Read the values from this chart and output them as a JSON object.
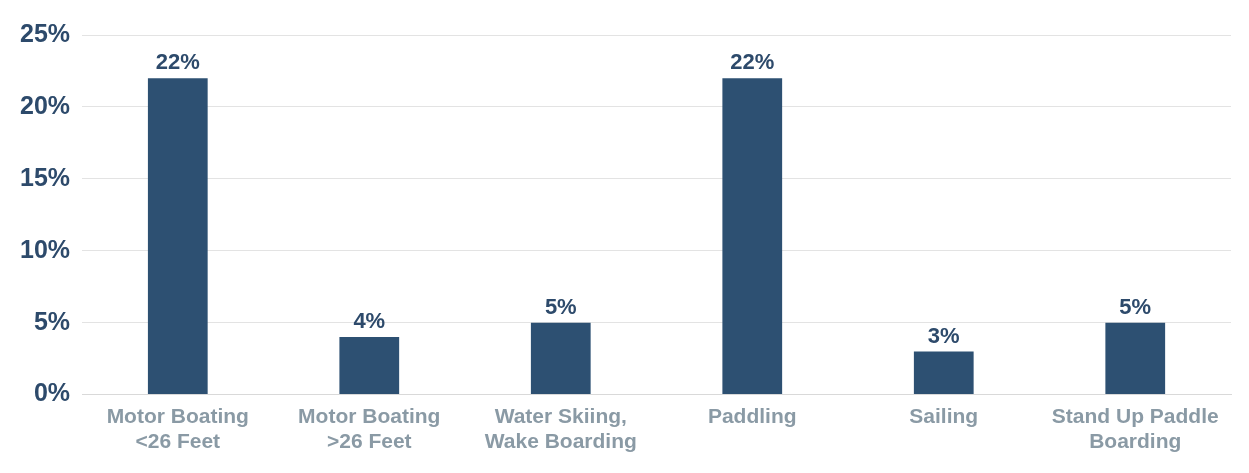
{
  "chart_data": {
    "type": "bar",
    "categories": [
      "Motor Boating <26 Feet",
      "Motor Boating >26 Feet",
      "Water Skiing, Wake Boarding",
      "Paddling",
      "Sailing",
      "Stand Up Paddle Boarding"
    ],
    "values": [
      22,
      4,
      5,
      22,
      3,
      5
    ],
    "color": "#2d5072",
    "value_labels": [
      "22%",
      "4%",
      "5%",
      "22%",
      "3%",
      "5%"
    ],
    "ylim": [
      0,
      25
    ],
    "yticks": [
      {
        "value": 0,
        "label": "0%"
      },
      {
        "value": 5,
        "label": "5%"
      },
      {
        "value": 10,
        "label": "10%"
      },
      {
        "value": 15,
        "label": "15%"
      },
      {
        "value": 20,
        "label": "20%"
      },
      {
        "value": 25,
        "label": "25%"
      }
    ],
    "grid": "y",
    "legend": false
  }
}
